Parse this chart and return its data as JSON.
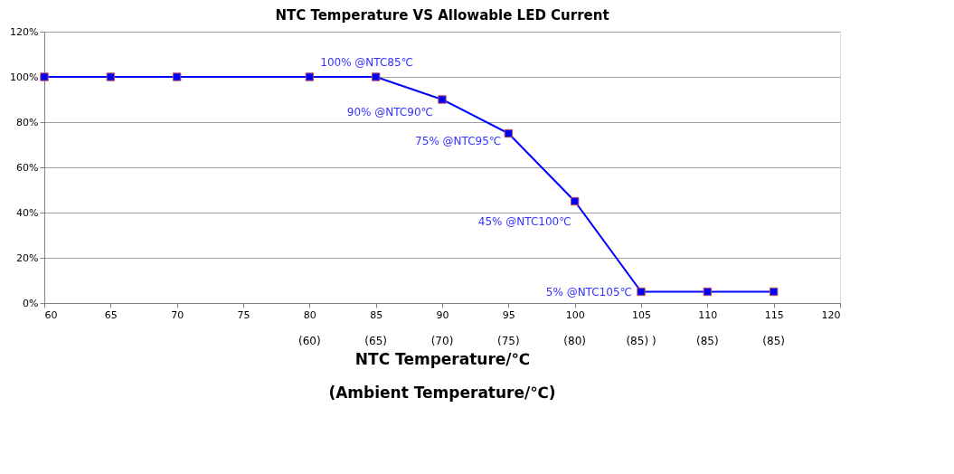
{
  "chart_data": {
    "type": "line",
    "title": "NTC Temperature VS Allowable LED Current",
    "xlabel": "NTC Temperature/℃",
    "x": [
      60,
      65,
      70,
      80,
      85,
      90,
      95,
      100,
      105,
      110,
      115
    ],
    "series": [
      {
        "color": "#0000ff",
        "values": [
          100,
          100,
          100,
          100,
          100,
          90,
          75,
          45,
          5,
          5,
          5
        ]
      }
    ],
    "xlim": [
      60,
      120
    ],
    "xticks": [
      60,
      65,
      70,
      75,
      80,
      85,
      90,
      95,
      100,
      105,
      110,
      115,
      120
    ],
    "ylim": [
      0,
      120
    ],
    "yticks": [
      {
        "value": 0,
        "label": "0%"
      },
      {
        "value": 20,
        "label": "20%"
      },
      {
        "value": 40,
        "label": "40%"
      },
      {
        "value": 60,
        "label": "60%"
      },
      {
        "value": 80,
        "label": "80%"
      },
      {
        "value": 100,
        "label": "100%"
      },
      {
        "value": 120,
        "label": "120%"
      }
    ],
    "annotations": [
      {
        "text": "100% @NTC85℃",
        "x": 85,
        "y": 100
      },
      {
        "text": "90% @NTC90℃",
        "x": 90,
        "y": 90
      },
      {
        "text": "75% @NTC95℃",
        "x": 95,
        "y": 75
      },
      {
        "text": "45% @NTC100℃",
        "x": 100,
        "y": 45
      },
      {
        "text": "5% @NTC105℃",
        "x": 105,
        "y": 5
      },
      "(60)",
      "(65)",
      "(70)",
      "(75)",
      "(80)",
      "(85) )",
      "(85)",
      "(85)",
      "(Ambient Temperature/℃)"
    ],
    "grid": "y",
    "marker": "square",
    "line_style": "solid"
  }
}
